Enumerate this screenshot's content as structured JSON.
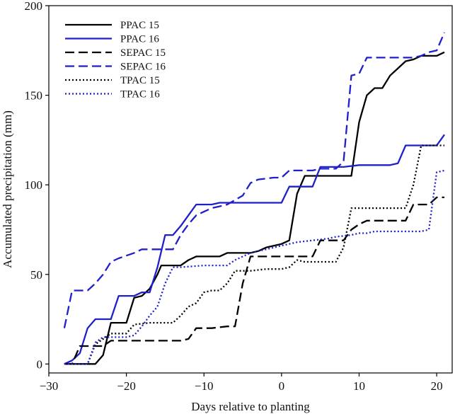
{
  "chart_data": {
    "type": "line",
    "title": "",
    "xlabel": "Days relative to planting",
    "ylabel": "Accumulated precipitation (mm)",
    "xlim": [
      -30,
      22
    ],
    "ylim": [
      -5,
      200
    ],
    "xticks": [
      -30,
      -20,
      -10,
      0,
      10,
      20
    ],
    "yticks": [
      0,
      50,
      100,
      150,
      200
    ],
    "grid": false,
    "legend_position": "top-left",
    "series": [
      {
        "name": "PPAC 15",
        "color": "#000000",
        "style": "solid",
        "points": [
          [
            -28,
            0
          ],
          [
            -24,
            0
          ],
          [
            -23,
            5
          ],
          [
            -22,
            23
          ],
          [
            -20,
            23
          ],
          [
            -19,
            37
          ],
          [
            -18,
            38
          ],
          [
            -17,
            42
          ],
          [
            -16,
            50
          ],
          [
            -15.5,
            55
          ],
          [
            -15,
            55
          ],
          [
            -13,
            55
          ],
          [
            -12,
            58
          ],
          [
            -11,
            60
          ],
          [
            -8,
            60
          ],
          [
            -7,
            62
          ],
          [
            -6,
            62
          ],
          [
            -4,
            62
          ],
          [
            -3,
            63
          ],
          [
            -2,
            65
          ],
          [
            -1,
            66
          ],
          [
            0,
            67
          ],
          [
            1,
            69
          ],
          [
            2,
            95
          ],
          [
            3,
            105
          ],
          [
            9,
            105
          ],
          [
            10,
            135
          ],
          [
            11,
            150
          ],
          [
            12,
            154
          ],
          [
            13,
            154
          ],
          [
            14,
            161
          ],
          [
            15,
            165
          ],
          [
            16,
            169
          ],
          [
            17,
            170
          ],
          [
            18,
            172
          ],
          [
            20,
            172
          ],
          [
            21,
            174
          ]
        ]
      },
      {
        "name": "PPAC 16",
        "color": "#1f1fcc",
        "style": "solid",
        "points": [
          [
            -28,
            0
          ],
          [
            -27,
            2
          ],
          [
            -26,
            6
          ],
          [
            -25,
            20
          ],
          [
            -24,
            25
          ],
          [
            -22,
            25
          ],
          [
            -21,
            38
          ],
          [
            -19,
            38
          ],
          [
            -18,
            40
          ],
          [
            -17,
            40
          ],
          [
            -16,
            54
          ],
          [
            -15,
            72
          ],
          [
            -14,
            72
          ],
          [
            -13,
            77
          ],
          [
            -12,
            83
          ],
          [
            -11,
            89
          ],
          [
            -9,
            89
          ],
          [
            -8,
            90
          ],
          [
            -6,
            90
          ],
          [
            -3,
            90
          ],
          [
            0,
            90
          ],
          [
            1,
            99
          ],
          [
            4,
            99
          ],
          [
            5,
            110
          ],
          [
            8,
            110
          ],
          [
            10,
            111
          ],
          [
            14,
            111
          ],
          [
            15,
            112
          ],
          [
            16,
            122
          ],
          [
            18,
            122
          ],
          [
            20,
            122
          ],
          [
            21,
            128
          ]
        ]
      },
      {
        "name": "SEPAC 15",
        "color": "#000000",
        "style": "dashed",
        "points": [
          [
            -28,
            0
          ],
          [
            -27,
            0
          ],
          [
            -26,
            10
          ],
          [
            -23,
            10
          ],
          [
            -22,
            13
          ],
          [
            -20,
            13
          ],
          [
            -13,
            13
          ],
          [
            -12,
            14
          ],
          [
            -11,
            20
          ],
          [
            -9,
            20
          ],
          [
            -7,
            21
          ],
          [
            -6,
            21
          ],
          [
            -5,
            45
          ],
          [
            -4,
            60
          ],
          [
            0,
            60
          ],
          [
            4,
            60
          ],
          [
            5,
            69
          ],
          [
            7,
            69
          ],
          [
            8,
            69
          ],
          [
            9,
            75
          ],
          [
            10,
            78
          ],
          [
            11,
            80
          ],
          [
            12,
            80
          ],
          [
            13,
            80
          ],
          [
            16,
            80
          ],
          [
            17,
            89
          ],
          [
            19,
            89
          ],
          [
            20,
            93
          ],
          [
            21,
            93
          ]
        ]
      },
      {
        "name": "SEPAC 16",
        "color": "#1f1fcc",
        "style": "dashed",
        "points": [
          [
            -28,
            20
          ],
          [
            -27,
            41
          ],
          [
            -25,
            41
          ],
          [
            -24,
            45
          ],
          [
            -23,
            50
          ],
          [
            -22,
            57
          ],
          [
            -21,
            59
          ],
          [
            -19,
            62
          ],
          [
            -18,
            64
          ],
          [
            -15,
            64
          ],
          [
            -14,
            64
          ],
          [
            -13,
            72
          ],
          [
            -12,
            78
          ],
          [
            -11,
            83
          ],
          [
            -10,
            85
          ],
          [
            -9,
            87
          ],
          [
            -8,
            88
          ],
          [
            -7,
            89
          ],
          [
            -5,
            94
          ],
          [
            -4,
            101
          ],
          [
            -3,
            103
          ],
          [
            -1,
            104
          ],
          [
            0,
            104
          ],
          [
            1,
            108
          ],
          [
            4,
            108
          ],
          [
            5,
            109
          ],
          [
            7,
            109
          ],
          [
            8,
            113
          ],
          [
            9,
            161
          ],
          [
            10,
            162
          ],
          [
            11,
            171
          ],
          [
            17,
            171
          ],
          [
            18,
            172
          ],
          [
            19,
            174
          ],
          [
            20,
            175
          ],
          [
            21,
            185
          ]
        ]
      },
      {
        "name": "TPAC 15",
        "color": "#000000",
        "style": "dotted",
        "points": [
          [
            -28,
            0
          ],
          [
            -27,
            0
          ],
          [
            -26,
            0
          ],
          [
            -25,
            0
          ],
          [
            -24,
            11
          ],
          [
            -22,
            17
          ],
          [
            -20,
            17
          ],
          [
            -19,
            22
          ],
          [
            -17,
            23
          ],
          [
            -14,
            23
          ],
          [
            -13,
            27
          ],
          [
            -12,
            32
          ],
          [
            -11,
            34
          ],
          [
            -10,
            40
          ],
          [
            -9,
            41
          ],
          [
            -8,
            41
          ],
          [
            -7,
            45
          ],
          [
            -6,
            52
          ],
          [
            -5,
            52
          ],
          [
            -4,
            52
          ],
          [
            -2,
            53
          ],
          [
            0,
            53
          ],
          [
            1,
            54
          ],
          [
            2,
            58
          ],
          [
            3,
            57
          ],
          [
            7,
            57
          ],
          [
            8,
            65
          ],
          [
            9,
            87
          ],
          [
            15,
            87
          ],
          [
            16,
            87
          ],
          [
            17,
            100
          ],
          [
            18,
            122
          ],
          [
            21,
            122
          ]
        ]
      },
      {
        "name": "TPAC 16",
        "color": "#1f1fcc",
        "style": "dotted",
        "points": [
          [
            -28,
            0
          ],
          [
            -27,
            0
          ],
          [
            -26,
            0
          ],
          [
            -25,
            0
          ],
          [
            -24,
            12
          ],
          [
            -23,
            15
          ],
          [
            -21,
            15
          ],
          [
            -20,
            15
          ],
          [
            -19,
            16
          ],
          [
            -18,
            21
          ],
          [
            -17,
            27
          ],
          [
            -16,
            32
          ],
          [
            -15,
            45
          ],
          [
            -14,
            54
          ],
          [
            -13,
            54
          ],
          [
            -10,
            55
          ],
          [
            -7,
            55
          ],
          [
            -6,
            58
          ],
          [
            -4,
            62
          ],
          [
            -3,
            63
          ],
          [
            -1,
            65
          ],
          [
            0,
            66
          ],
          [
            2,
            68
          ],
          [
            4,
            69
          ],
          [
            6,
            70
          ],
          [
            7,
            71
          ],
          [
            9,
            72
          ],
          [
            10,
            73
          ],
          [
            11,
            73
          ],
          [
            12,
            74
          ],
          [
            17,
            74
          ],
          [
            18,
            74
          ],
          [
            19,
            75
          ],
          [
            20,
            107
          ],
          [
            21,
            108
          ]
        ]
      }
    ]
  }
}
